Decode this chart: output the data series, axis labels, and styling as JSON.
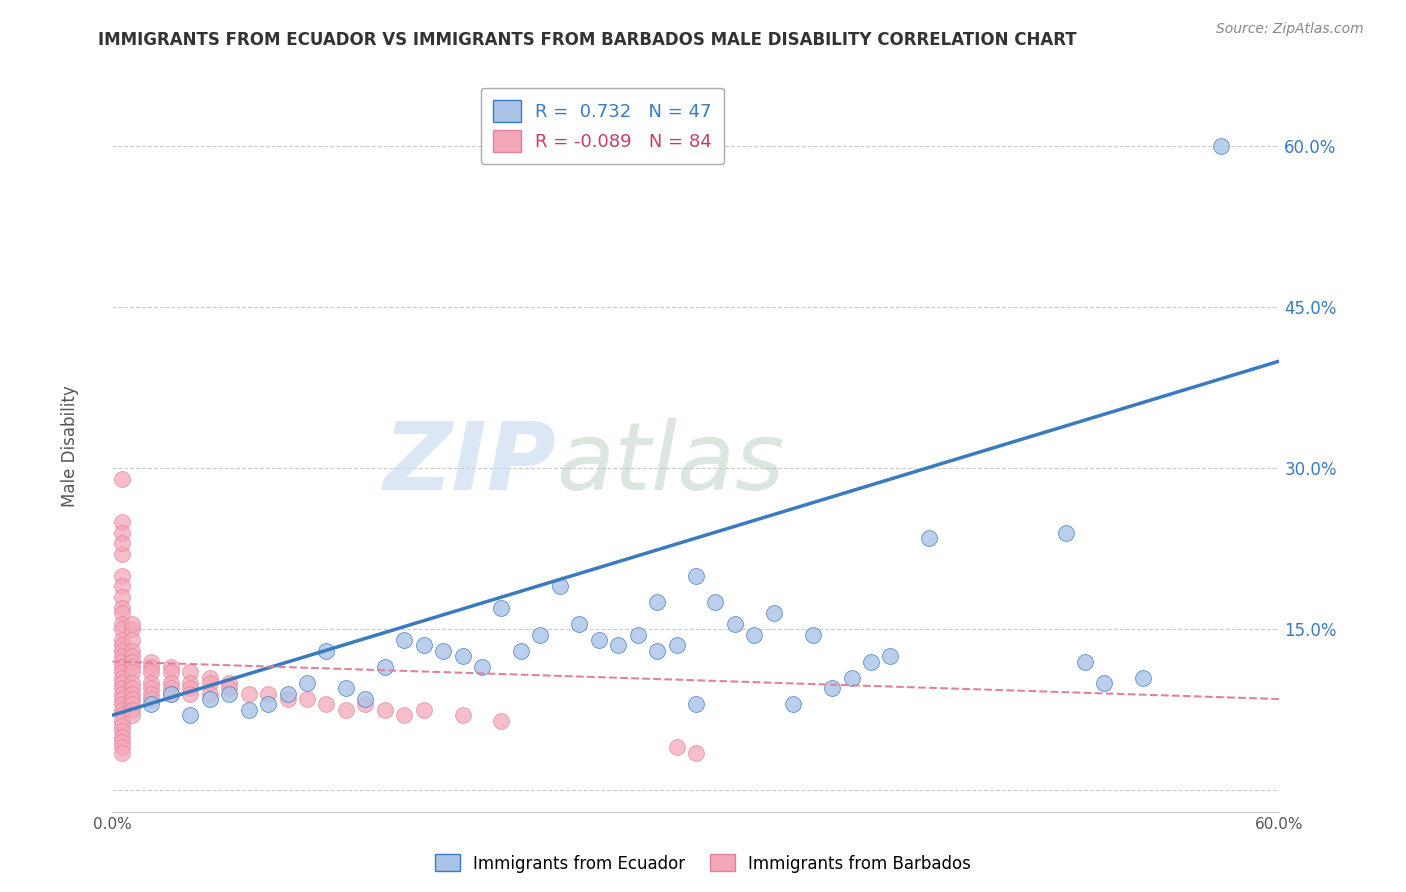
{
  "title": "IMMIGRANTS FROM ECUADOR VS IMMIGRANTS FROM BARBADOS MALE DISABILITY CORRELATION CHART",
  "source": "Source: ZipAtlas.com",
  "xlabel": "",
  "ylabel": "Male Disability",
  "xlim": [
    0.0,
    0.6
  ],
  "ylim": [
    -0.02,
    0.67
  ],
  "ytick_values": [
    0.0,
    0.15,
    0.3,
    0.45,
    0.6
  ],
  "ytick_labels": [
    "",
    "15.0%",
    "30.0%",
    "45.0%",
    "60.0%"
  ],
  "xtick_values": [
    0.0,
    0.1,
    0.2,
    0.3,
    0.4,
    0.5,
    0.6
  ],
  "xtick_labels": [
    "0.0%",
    "",
    "",
    "",
    "",
    "",
    "60.0%"
  ],
  "ecuador_color": "#aac4e8",
  "barbados_color": "#f4a7b9",
  "ecuador_line_color": "#3a7abf",
  "barbados_line_color": "#e0829a",
  "legend_r_ecuador": "0.732",
  "legend_n_ecuador": "47",
  "legend_r_barbados": "-0.089",
  "legend_n_barbados": "84",
  "legend_label_ecuador": "Immigrants from Ecuador",
  "legend_label_barbados": "Immigrants from Barbados",
  "watermark_zip": "ZIP",
  "watermark_atlas": "atlas",
  "background_color": "#ffffff",
  "grid_color": "#cccccc",
  "title_color": "#333333",
  "ecuador_scatter": [
    [
      0.02,
      0.08
    ],
    [
      0.03,
      0.09
    ],
    [
      0.04,
      0.07
    ],
    [
      0.05,
      0.085
    ],
    [
      0.06,
      0.09
    ],
    [
      0.07,
      0.075
    ],
    [
      0.08,
      0.08
    ],
    [
      0.09,
      0.09
    ],
    [
      0.1,
      0.1
    ],
    [
      0.11,
      0.13
    ],
    [
      0.12,
      0.095
    ],
    [
      0.13,
      0.085
    ],
    [
      0.14,
      0.115
    ],
    [
      0.15,
      0.14
    ],
    [
      0.16,
      0.135
    ],
    [
      0.17,
      0.13
    ],
    [
      0.18,
      0.125
    ],
    [
      0.19,
      0.115
    ],
    [
      0.2,
      0.17
    ],
    [
      0.21,
      0.13
    ],
    [
      0.22,
      0.145
    ],
    [
      0.23,
      0.19
    ],
    [
      0.24,
      0.155
    ],
    [
      0.25,
      0.14
    ],
    [
      0.26,
      0.135
    ],
    [
      0.27,
      0.145
    ],
    [
      0.28,
      0.13
    ],
    [
      0.29,
      0.135
    ],
    [
      0.3,
      0.2
    ],
    [
      0.31,
      0.175
    ],
    [
      0.32,
      0.155
    ],
    [
      0.33,
      0.145
    ],
    [
      0.34,
      0.165
    ],
    [
      0.35,
      0.08
    ],
    [
      0.36,
      0.145
    ],
    [
      0.37,
      0.095
    ],
    [
      0.38,
      0.105
    ],
    [
      0.39,
      0.12
    ],
    [
      0.4,
      0.125
    ],
    [
      0.28,
      0.175
    ],
    [
      0.42,
      0.235
    ],
    [
      0.49,
      0.24
    ],
    [
      0.5,
      0.12
    ],
    [
      0.51,
      0.1
    ],
    [
      0.53,
      0.105
    ],
    [
      0.57,
      0.6
    ],
    [
      0.3,
      0.08
    ]
  ],
  "barbados_scatter": [
    [
      0.005,
      0.29
    ],
    [
      0.005,
      0.22
    ],
    [
      0.005,
      0.2
    ],
    [
      0.005,
      0.19
    ],
    [
      0.005,
      0.18
    ],
    [
      0.005,
      0.17
    ],
    [
      0.005,
      0.165
    ],
    [
      0.005,
      0.155
    ],
    [
      0.005,
      0.15
    ],
    [
      0.005,
      0.14
    ],
    [
      0.005,
      0.135
    ],
    [
      0.005,
      0.13
    ],
    [
      0.005,
      0.125
    ],
    [
      0.005,
      0.12
    ],
    [
      0.005,
      0.115
    ],
    [
      0.005,
      0.11
    ],
    [
      0.005,
      0.105
    ],
    [
      0.005,
      0.1
    ],
    [
      0.005,
      0.095
    ],
    [
      0.005,
      0.09
    ],
    [
      0.005,
      0.085
    ],
    [
      0.005,
      0.08
    ],
    [
      0.005,
      0.075
    ],
    [
      0.005,
      0.07
    ],
    [
      0.005,
      0.065
    ],
    [
      0.005,
      0.06
    ],
    [
      0.005,
      0.055
    ],
    [
      0.005,
      0.05
    ],
    [
      0.005,
      0.045
    ],
    [
      0.005,
      0.04
    ],
    [
      0.01,
      0.15
    ],
    [
      0.01,
      0.14
    ],
    [
      0.01,
      0.13
    ],
    [
      0.01,
      0.125
    ],
    [
      0.01,
      0.12
    ],
    [
      0.01,
      0.115
    ],
    [
      0.01,
      0.11
    ],
    [
      0.01,
      0.1
    ],
    [
      0.01,
      0.095
    ],
    [
      0.01,
      0.09
    ],
    [
      0.01,
      0.085
    ],
    [
      0.01,
      0.08
    ],
    [
      0.01,
      0.075
    ],
    [
      0.01,
      0.07
    ],
    [
      0.02,
      0.12
    ],
    [
      0.02,
      0.115
    ],
    [
      0.02,
      0.11
    ],
    [
      0.02,
      0.1
    ],
    [
      0.02,
      0.095
    ],
    [
      0.02,
      0.09
    ],
    [
      0.02,
      0.085
    ],
    [
      0.03,
      0.115
    ],
    [
      0.03,
      0.11
    ],
    [
      0.03,
      0.1
    ],
    [
      0.03,
      0.095
    ],
    [
      0.03,
      0.09
    ],
    [
      0.04,
      0.11
    ],
    [
      0.04,
      0.1
    ],
    [
      0.04,
      0.095
    ],
    [
      0.04,
      0.09
    ],
    [
      0.05,
      0.105
    ],
    [
      0.05,
      0.1
    ],
    [
      0.05,
      0.09
    ],
    [
      0.06,
      0.1
    ],
    [
      0.06,
      0.095
    ],
    [
      0.07,
      0.09
    ],
    [
      0.08,
      0.09
    ],
    [
      0.09,
      0.085
    ],
    [
      0.1,
      0.085
    ],
    [
      0.11,
      0.08
    ],
    [
      0.12,
      0.075
    ],
    [
      0.13,
      0.08
    ],
    [
      0.14,
      0.075
    ],
    [
      0.15,
      0.07
    ],
    [
      0.16,
      0.075
    ],
    [
      0.18,
      0.07
    ],
    [
      0.2,
      0.065
    ],
    [
      0.29,
      0.04
    ],
    [
      0.3,
      0.035
    ],
    [
      0.005,
      0.25
    ],
    [
      0.005,
      0.24
    ],
    [
      0.005,
      0.23
    ],
    [
      0.01,
      0.155
    ],
    [
      0.005,
      0.035
    ]
  ],
  "ecuador_line": [
    0.0,
    0.07,
    0.6,
    0.4
  ],
  "barbados_line": [
    0.0,
    0.12,
    0.6,
    0.085
  ]
}
